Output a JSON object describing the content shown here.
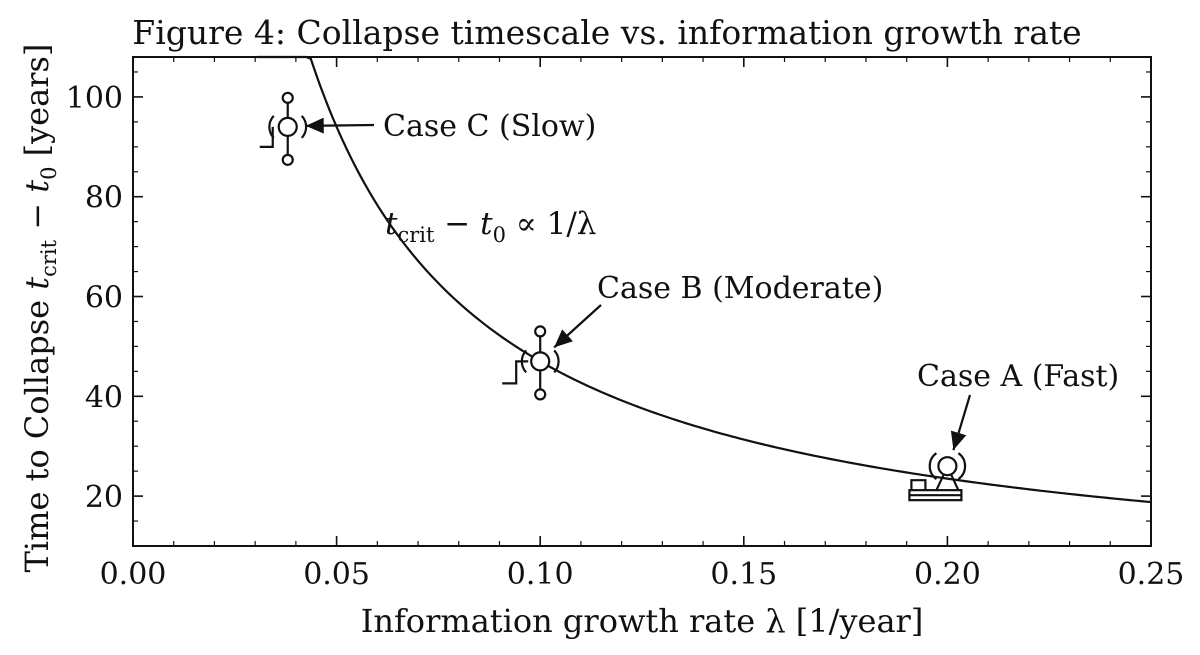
{
  "chart_data": {
    "type": "line",
    "title": "Figure 4: Collapse timescale vs. information growth rate",
    "xlabel": "Information growth rate λ [1/year]",
    "ylabel_main": "Time to Collapse ",
    "ylabel_t": "t",
    "ylabel_sub": "crit",
    "ylabel_minus": " − ",
    "ylabel_t0": "t",
    "ylabel_sub0": "0",
    "ylabel_units": " [years]",
    "xlim": [
      0.0,
      0.25
    ],
    "ylim": [
      10,
      108
    ],
    "xticks": [
      0.0,
      0.05,
      0.1,
      0.15,
      0.2,
      0.25
    ],
    "xtick_labels": [
      "0.00",
      "0.05",
      "0.10",
      "0.15",
      "0.20",
      "0.25"
    ],
    "yticks": [
      20,
      40,
      60,
      80,
      100
    ],
    "ytick_labels": [
      "20",
      "40",
      "60",
      "80",
      "100"
    ],
    "grid": false,
    "curve": {
      "relation": "inverse",
      "constant": 4.7,
      "x_start": 0.0305,
      "x_end": 0.25,
      "formula_parts": {
        "t": "t",
        "sub": "crit",
        "rest": " − t",
        "sub0": "0",
        "tail": " ∝ 1/λ"
      }
    },
    "points": [
      {
        "label": "Case C (Slow)",
        "x": 0.038,
        "y": 94
      },
      {
        "label": "Case B (Moderate)",
        "x": 0.1,
        "y": 47
      },
      {
        "label": "Case A (Fast)",
        "x": 0.2,
        "y": 26
      }
    ]
  }
}
